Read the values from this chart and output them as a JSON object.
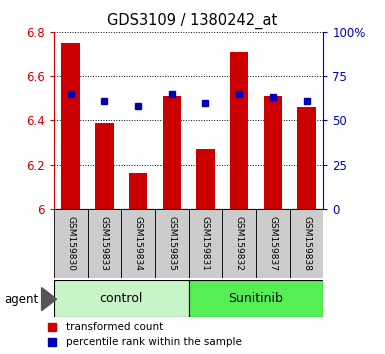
{
  "title": "GDS3109 / 1380242_at",
  "samples": [
    "GSM159830",
    "GSM159833",
    "GSM159834",
    "GSM159835",
    "GSM159831",
    "GSM159832",
    "GSM159837",
    "GSM159838"
  ],
  "red_values": [
    6.75,
    6.39,
    6.16,
    6.51,
    6.27,
    6.71,
    6.51,
    6.46
  ],
  "blue_values": [
    65,
    61,
    58,
    65,
    60,
    65,
    63,
    61
  ],
  "ymin": 6.0,
  "ymax": 6.8,
  "y2min": 0,
  "y2max": 100,
  "yticks": [
    6.0,
    6.2,
    6.4,
    6.6,
    6.8
  ],
  "y2ticks": [
    0,
    25,
    50,
    75,
    100
  ],
  "y2ticklabels": [
    "0",
    "25",
    "50",
    "75",
    "100%"
  ],
  "groups": [
    {
      "label": "control",
      "indices": [
        0,
        1,
        2,
        3
      ],
      "color": "#c8f5c8"
    },
    {
      "label": "Sunitinib",
      "indices": [
        4,
        5,
        6,
        7
      ],
      "color": "#55ee55"
    }
  ],
  "red_color": "#cc0000",
  "blue_color": "#0000bb",
  "bar_width": 0.55,
  "tick_label_color_left": "#cc0000",
  "tick_label_color_right": "#0000bb",
  "agent_label": "agent",
  "legend_red": "transformed count",
  "legend_blue": "percentile rank within the sample",
  "sample_box_color": "#cccccc",
  "bar_base": 6.0,
  "blue_marker_size": 5,
  "fig_width": 3.85,
  "fig_height": 3.54
}
